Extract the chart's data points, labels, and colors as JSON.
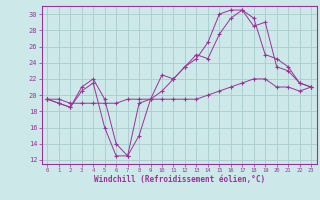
{
  "background_color": "#cde8e8",
  "grid_color": "#aacccc",
  "line_color": "#993399",
  "xlabel": "Windchill (Refroidissement éolien,°C)",
  "xlim": [
    -0.5,
    23.5
  ],
  "ylim": [
    11.5,
    31.0
  ],
  "xticks": [
    0,
    1,
    2,
    3,
    4,
    5,
    6,
    7,
    8,
    9,
    10,
    11,
    12,
    13,
    14,
    15,
    16,
    17,
    18,
    19,
    20,
    21,
    22,
    23
  ],
  "yticks": [
    12,
    14,
    16,
    18,
    20,
    22,
    24,
    26,
    28,
    30
  ],
  "series": [
    {
      "x": [
        0,
        1,
        2,
        3,
        4,
        5,
        6,
        7,
        8,
        9,
        10,
        11,
        12,
        13,
        14,
        15,
        16,
        17,
        18,
        19,
        20,
        21,
        22,
        23
      ],
      "y": [
        19.5,
        19.5,
        19.0,
        19.0,
        19.0,
        19.0,
        19.0,
        19.5,
        19.5,
        19.5,
        19.5,
        19.5,
        19.5,
        19.5,
        20.0,
        20.5,
        21.0,
        21.5,
        22.0,
        22.0,
        21.0,
        21.0,
        20.5,
        21.0
      ]
    },
    {
      "x": [
        0,
        1,
        2,
        3,
        4,
        5,
        6,
        7,
        8,
        9,
        10,
        11,
        12,
        13,
        14,
        15,
        16,
        17,
        18,
        19,
        20,
        21,
        22,
        23
      ],
      "y": [
        19.5,
        19.0,
        18.5,
        21.0,
        22.0,
        19.5,
        14.0,
        12.5,
        19.0,
        19.5,
        20.5,
        22.0,
        23.5,
        24.5,
        26.5,
        30.0,
        30.5,
        30.5,
        29.5,
        25.0,
        24.5,
        23.5,
        21.5,
        21.0
      ]
    },
    {
      "x": [
        0,
        1,
        2,
        3,
        4,
        5,
        6,
        7,
        8,
        9,
        10,
        11,
        12,
        13,
        14,
        15,
        16,
        17,
        18,
        19,
        20,
        21,
        22,
        23
      ],
      "y": [
        19.5,
        19.0,
        18.5,
        20.5,
        21.5,
        16.0,
        12.5,
        12.5,
        15.0,
        19.5,
        22.5,
        22.0,
        23.5,
        25.0,
        24.5,
        27.5,
        29.5,
        30.5,
        28.5,
        29.0,
        23.5,
        23.0,
        21.5,
        21.0
      ]
    }
  ]
}
